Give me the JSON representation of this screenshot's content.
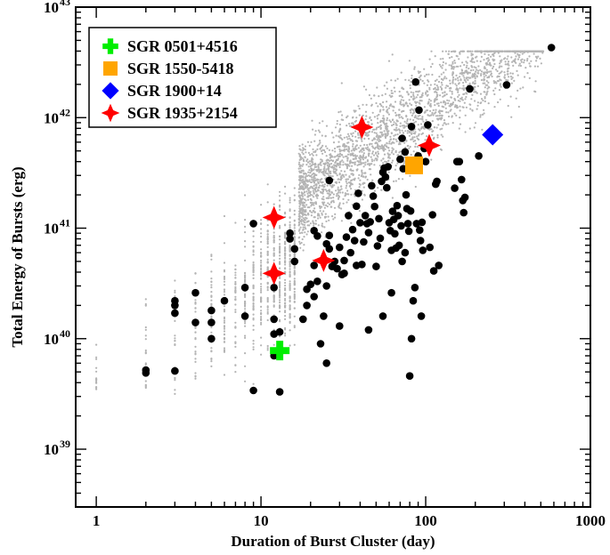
{
  "chart_data": {
    "type": "scatter",
    "xlabel": "Duration of Burst Cluster (day)",
    "ylabel": "Total Energy of Bursts (erg)",
    "xscale": "log",
    "yscale": "log",
    "xlim": [
      0.75,
      1000
    ],
    "ylim": [
      3e+38,
      1e+43
    ],
    "x_ticks": [
      {
        "value": 1,
        "label": "1"
      },
      {
        "value": 10,
        "label": "10"
      },
      {
        "value": 100,
        "label": "100"
      },
      {
        "value": 1000,
        "label": "1000"
      }
    ],
    "y_ticks": [
      {
        "value": 1e+39,
        "base": "10",
        "exp": "39"
      },
      {
        "value": 1e+40,
        "base": "10",
        "exp": "40"
      },
      {
        "value": 1e+41,
        "base": "10",
        "exp": "41"
      },
      {
        "value": 1e+42,
        "base": "10",
        "exp": "42"
      },
      {
        "value": 1e+43,
        "base": "10",
        "exp": "43"
      }
    ],
    "legend_position": "top-left",
    "series": [
      {
        "name": "SGR 0501+4516",
        "marker": "plus",
        "color": "#00ee00",
        "points": [
          [
            13,
            7.8e+39
          ]
        ]
      },
      {
        "name": "SGR 1550-5418",
        "marker": "square",
        "color": "#ffa500",
        "points": [
          [
            85,
            3.7e+41
          ]
        ]
      },
      {
        "name": "SGR 1900+14",
        "marker": "diamond",
        "color": "#0000ff",
        "points": [
          [
            255,
            7e+41
          ]
        ]
      },
      {
        "name": "SGR 1935+2154",
        "marker": "star4",
        "color": "#ff0000",
        "points": [
          [
            12,
            3.9e+40
          ],
          [
            12,
            1.25e+41
          ],
          [
            24,
            5.1e+40
          ],
          [
            41,
            8.2e+41
          ],
          [
            105,
            5.6e+41
          ]
        ]
      }
    ],
    "observed_clusters": {
      "marker": "filled-circle",
      "color": "#000000",
      "points": [
        [
          2,
          4.9e+39
        ],
        [
          2,
          5.2e+39
        ],
        [
          3,
          5.1e+39
        ],
        [
          3,
          1.7e+40
        ],
        [
          3,
          2e+40
        ],
        [
          3,
          2.2e+40
        ],
        [
          4,
          1.4e+40
        ],
        [
          4,
          2.6e+40
        ],
        [
          5,
          1e+40
        ],
        [
          5,
          1.4e+40
        ],
        [
          5,
          1.8e+40
        ],
        [
          6,
          2.2e+40
        ],
        [
          8,
          1.6e+40
        ],
        [
          8,
          2.9e+40
        ],
        [
          9,
          3.4e+39
        ],
        [
          9,
          1.1e+41
        ],
        [
          12,
          1.1e+40
        ],
        [
          12,
          1.5e+40
        ],
        [
          12,
          2.9e+40
        ],
        [
          12,
          7e+39
        ],
        [
          13,
          3.3e+39
        ],
        [
          13,
          1.15e+40
        ],
        [
          15,
          9e+40
        ],
        [
          15,
          8e+40
        ],
        [
          16,
          6.5e+40
        ],
        [
          16,
          5e+40
        ],
        [
          18,
          1.5e+40
        ],
        [
          19,
          2e+40
        ],
        [
          19,
          2.8e+40
        ],
        [
          20,
          3.1e+40
        ],
        [
          21,
          4.6e+40
        ],
        [
          21,
          2.4e+40
        ],
        [
          21,
          9.5e+40
        ],
        [
          22,
          3.3e+40
        ],
        [
          22,
          8.5e+40
        ],
        [
          23,
          9e+39
        ],
        [
          24,
          1.6e+40
        ],
        [
          25,
          3e+40
        ],
        [
          25,
          6e+39
        ],
        [
          25,
          7.2e+40
        ],
        [
          26,
          6.5e+40
        ],
        [
          26,
          8.6e+40
        ],
        [
          26,
          2.7e+41
        ],
        [
          27,
          4.5e+40
        ],
        [
          28,
          5e+40
        ],
        [
          29,
          4.3e+40
        ],
        [
          30,
          6.7e+40
        ],
        [
          30,
          1.3e+40
        ],
        [
          31,
          3.8e+40
        ],
        [
          32,
          5.1e+40
        ],
        [
          32,
          3.9e+40
        ],
        [
          33,
          8.3e+40
        ],
        [
          34,
          1.3e+41
        ],
        [
          35,
          6e+40
        ],
        [
          36,
          9.7e+40
        ],
        [
          37,
          7.7e+40
        ],
        [
          38,
          4.6e+40
        ],
        [
          38,
          1.58e+41
        ],
        [
          39,
          2.07e+41
        ],
        [
          40,
          1.12e+41
        ],
        [
          41,
          4.7e+40
        ],
        [
          42,
          7.5e+40
        ],
        [
          43,
          1.3e+41
        ],
        [
          44,
          1.1e+41
        ],
        [
          45,
          9.1e+40
        ],
        [
          46,
          1.14e+41
        ],
        [
          47,
          2.42e+41
        ],
        [
          48,
          1.95e+41
        ],
        [
          49,
          1.57e+41
        ],
        [
          50,
          4.5e+40
        ],
        [
          51,
          6.9e+40
        ],
        [
          52,
          1.22e+41
        ],
        [
          53,
          8.1e+40
        ],
        [
          54,
          2.65e+41
        ],
        [
          55,
          3.2e+41
        ],
        [
          56,
          3.5e+41
        ],
        [
          57,
          2.9e+41
        ],
        [
          58,
          2.32e+41
        ],
        [
          59,
          3.6e+41
        ],
        [
          60,
          1.12e+41
        ],
        [
          61,
          9.5e+40
        ],
        [
          62,
          6.3e+40
        ],
        [
          63,
          1.42e+41
        ],
        [
          64,
          1.2e+41
        ],
        [
          65,
          8.9e+40
        ],
        [
          66,
          6.6e+40
        ],
        [
          67,
          1.6e+41
        ],
        [
          68,
          1.3e+41
        ],
        [
          69,
          7e+40
        ],
        [
          70,
          4.2e+41
        ],
        [
          71,
          1.05e+41
        ],
        [
          72,
          6.5e+41
        ],
        [
          73,
          3.45e+41
        ],
        [
          75,
          4.9e+41
        ],
        [
          76,
          2e+41
        ],
        [
          77,
          1.5e+41
        ],
        [
          78,
          1.1e+41
        ],
        [
          79,
          9.4e+40
        ],
        [
          81,
          1.43e+41
        ],
        [
          82,
          8.3e+41
        ],
        [
          84,
          3.9e+41
        ],
        [
          86,
          2.9e+40
        ],
        [
          87,
          2.1e+42
        ],
        [
          88,
          1.1e+41
        ],
        [
          90,
          4.5e+41
        ],
        [
          91,
          1.17e+42
        ],
        [
          92,
          9.6e+40
        ],
        [
          93,
          7.7e+40
        ],
        [
          95,
          1.13e+41
        ],
        [
          96,
          6.3e+40
        ],
        [
          98,
          5.25e+41
        ],
        [
          100,
          4e+41
        ],
        [
          103,
          8.6e+41
        ],
        [
          106,
          6.7e+40
        ],
        [
          110,
          1.32e+41
        ],
        [
          112,
          4.1e+40
        ],
        [
          115,
          2.5e+41
        ],
        [
          117,
          2.65e+41
        ],
        [
          120,
          4.6e+40
        ],
        [
          150,
          2.3e+41
        ],
        [
          155,
          4e+41
        ],
        [
          160,
          4e+41
        ],
        [
          165,
          2.75e+41
        ],
        [
          168,
          1.78e+41
        ],
        [
          170,
          1.38e+41
        ],
        [
          173,
          1.9e+41
        ],
        [
          185,
          1.82e+42
        ],
        [
          210,
          4.5e+41
        ],
        [
          80,
          4.6e+39
        ],
        [
          82,
          1e+40
        ],
        [
          84,
          2.2e+40
        ],
        [
          75,
          6e+40
        ],
        [
          72,
          5e+40
        ],
        [
          62,
          2.6e+40
        ],
        [
          55,
          1.6e+40
        ],
        [
          45,
          1.2e+40
        ],
        [
          94,
          1.6e+40
        ],
        [
          310,
          1.98e+42
        ],
        [
          580,
          4.3e+42
        ]
      ]
    },
    "simulated_clusters": {
      "marker": "small-dot",
      "color": "#b4b4b4"
    }
  }
}
